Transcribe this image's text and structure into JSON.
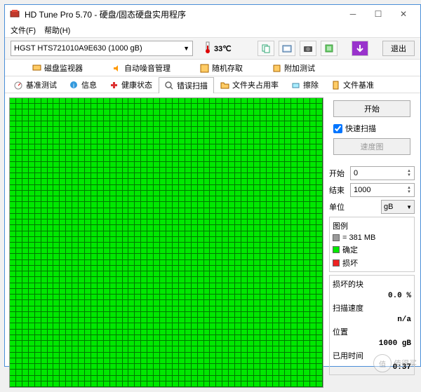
{
  "window": {
    "title": "HD Tune Pro 5.70 - 硬盘/固态硬盘实用程序"
  },
  "menu": {
    "file": "文件(F)",
    "help": "帮助(H)"
  },
  "toolbar": {
    "drive": "HGST HTS721010A9E630 (1000 gB)",
    "temp": "33℃",
    "exit": "退出"
  },
  "tabs_row1": {
    "disk_monitor": "磁盘监视器",
    "auto_noise": "自动噪音管理",
    "random_access": "随机存取",
    "extra_tests": "附加测试"
  },
  "tabs_row2": {
    "benchmark": "基准测试",
    "info": "信息",
    "health": "健康状态",
    "error_scan": "错误扫描",
    "folder_usage": "文件夹占用率",
    "erase": "擦除",
    "file_bench": "文件基准"
  },
  "side": {
    "start_btn": "开始",
    "quick_scan": "快速扫描",
    "speed_map": "速度图",
    "start_label": "开始",
    "start_val": "0",
    "end_label": "结束",
    "end_val": "1000",
    "unit_label": "单位",
    "unit_val": "gB",
    "legend_title": "图例",
    "legend_size": "= 381 MB",
    "legend_ok": "确定",
    "legend_bad": "损坏",
    "stat_damaged": "损坏的块",
    "stat_damaged_v": "0.0 %",
    "stat_speed": "扫描速度",
    "stat_speed_v": "n/a",
    "stat_pos": "位置",
    "stat_pos_v": "1000 gB",
    "stat_time": "已用时间",
    "stat_time_v": "0:37"
  },
  "colors": {
    "ok": "#00e800",
    "bad": "#ee2222",
    "gray": "#999999"
  },
  "watermark": "值得买"
}
